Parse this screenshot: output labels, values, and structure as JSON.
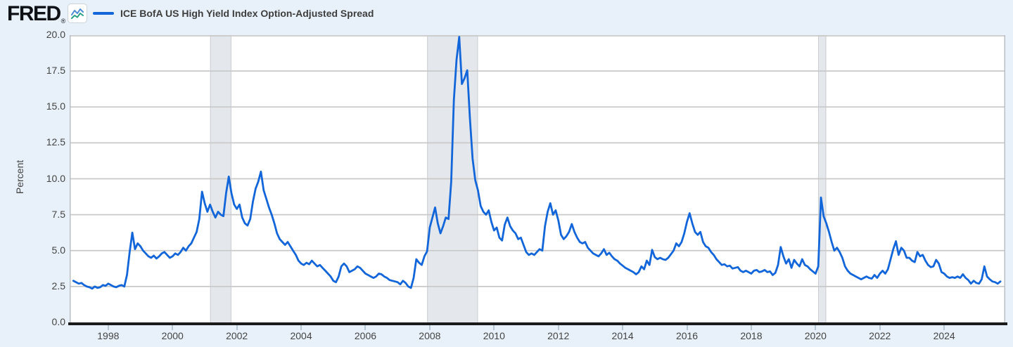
{
  "brand": {
    "logo_text": "FRED",
    "registered_mark": "®"
  },
  "legend": {
    "series_label": "ICE BofA US High Yield Index Option-Adjusted Spread"
  },
  "y_axis": {
    "label": "Percent",
    "tick_labels": [
      "20.0",
      "17.5",
      "15.0",
      "12.5",
      "10.0",
      "7.5",
      "5.0",
      "2.5",
      "0.0"
    ]
  },
  "x_axis": {
    "tick_labels": [
      "1998",
      "2000",
      "2002",
      "2004",
      "2006",
      "2008",
      "2010",
      "2012",
      "2014",
      "2016",
      "2018",
      "2020",
      "2022",
      "2024"
    ]
  },
  "chart_data": {
    "type": "line",
    "title": "ICE BofA US High Yield Index Option-Adjusted Spread",
    "xlabel": "",
    "ylabel": "Percent",
    "ylim": [
      0,
      20
    ],
    "y_tick_step": 2.5,
    "x_domain": [
      1996.8,
      2025.9
    ],
    "x_ticks": [
      1998,
      2000,
      2002,
      2004,
      2006,
      2008,
      2010,
      2012,
      2014,
      2016,
      2018,
      2020,
      2022,
      2024
    ],
    "grid": "horizontal",
    "legend_position": "top-left",
    "frequency": "monthly",
    "series_name": "ICE BofA US High Yield Index Option-Adjusted Spread",
    "units": "percent",
    "start_year": 1996.9167,
    "step_years": 0.0833333,
    "values": [
      2.9,
      2.8,
      2.7,
      2.75,
      2.6,
      2.5,
      2.45,
      2.35,
      2.5,
      2.4,
      2.45,
      2.6,
      2.55,
      2.7,
      2.6,
      2.5,
      2.45,
      2.55,
      2.6,
      2.5,
      3.3,
      4.9,
      6.25,
      5.1,
      5.5,
      5.3,
      5.0,
      4.8,
      4.6,
      4.5,
      4.65,
      4.45,
      4.6,
      4.8,
      4.9,
      4.7,
      4.5,
      4.6,
      4.8,
      4.7,
      4.9,
      5.2,
      5.0,
      5.3,
      5.5,
      5.9,
      6.3,
      7.2,
      9.1,
      8.3,
      7.7,
      8.2,
      7.7,
      7.3,
      7.7,
      7.5,
      7.4,
      9.0,
      10.15,
      9.0,
      8.2,
      7.9,
      8.2,
      7.3,
      6.9,
      6.75,
      7.2,
      8.4,
      9.3,
      9.8,
      10.5,
      9.2,
      8.6,
      8.0,
      7.5,
      6.9,
      6.2,
      5.8,
      5.6,
      5.4,
      5.6,
      5.3,
      5.0,
      4.7,
      4.3,
      4.1,
      4.0,
      4.15,
      4.05,
      4.3,
      4.1,
      3.9,
      4.0,
      3.8,
      3.6,
      3.4,
      3.2,
      2.9,
      2.8,
      3.2,
      3.9,
      4.1,
      3.9,
      3.5,
      3.6,
      3.7,
      3.9,
      3.8,
      3.6,
      3.4,
      3.3,
      3.2,
      3.1,
      3.2,
      3.4,
      3.35,
      3.2,
      3.1,
      2.95,
      2.9,
      2.85,
      2.8,
      2.65,
      2.9,
      2.75,
      2.5,
      2.4,
      3.1,
      4.4,
      4.15,
      4.0,
      4.6,
      4.95,
      6.6,
      7.3,
      8.0,
      6.9,
      6.2,
      6.7,
      7.3,
      7.2,
      9.8,
      15.5,
      18.3,
      19.88,
      16.6,
      17.0,
      17.55,
      14.2,
      11.4,
      9.9,
      9.2,
      8.1,
      7.7,
      7.5,
      7.8,
      7.0,
      6.4,
      6.6,
      5.9,
      5.7,
      6.8,
      7.3,
      6.7,
      6.4,
      6.2,
      5.8,
      5.9,
      5.4,
      4.9,
      4.7,
      4.8,
      4.7,
      4.9,
      5.1,
      5.0,
      6.7,
      7.7,
      8.3,
      7.5,
      7.8,
      7.1,
      6.1,
      5.8,
      6.0,
      6.3,
      6.85,
      6.3,
      5.9,
      5.6,
      5.5,
      5.6,
      5.2,
      5.0,
      4.8,
      4.7,
      4.6,
      4.8,
      5.1,
      4.7,
      4.85,
      4.6,
      4.4,
      4.3,
      4.1,
      3.95,
      3.8,
      3.7,
      3.6,
      3.5,
      3.35,
      3.5,
      3.9,
      3.7,
      4.3,
      4.0,
      5.05,
      4.55,
      4.4,
      4.5,
      4.4,
      4.35,
      4.5,
      4.75,
      5.0,
      5.5,
      5.3,
      5.6,
      6.2,
      7.0,
      7.6,
      6.9,
      6.3,
      6.1,
      6.3,
      5.6,
      5.3,
      5.2,
      4.9,
      4.7,
      4.4,
      4.2,
      4.0,
      4.05,
      3.9,
      3.95,
      3.75,
      3.8,
      3.85,
      3.6,
      3.5,
      3.6,
      3.5,
      3.4,
      3.6,
      3.65,
      3.5,
      3.55,
      3.65,
      3.5,
      3.55,
      3.3,
      3.45,
      4.0,
      5.25,
      4.6,
      4.1,
      4.4,
      3.8,
      4.35,
      4.1,
      3.9,
      4.4,
      4.0,
      3.9,
      3.7,
      3.55,
      3.4,
      3.9,
      8.7,
      7.4,
      6.9,
      6.3,
      5.6,
      5.0,
      5.2,
      4.9,
      4.5,
      3.9,
      3.6,
      3.4,
      3.3,
      3.2,
      3.1,
      3.0,
      3.1,
      3.2,
      3.1,
      3.05,
      3.3,
      3.1,
      3.4,
      3.6,
      3.4,
      3.7,
      4.4,
      5.1,
      5.65,
      4.7,
      5.2,
      5.0,
      4.5,
      4.5,
      4.3,
      4.2,
      4.9,
      4.6,
      4.7,
      4.3,
      4.0,
      3.85,
      3.9,
      4.35,
      4.1,
      3.5,
      3.4,
      3.2,
      3.1,
      3.15,
      3.1,
      3.2,
      3.1,
      3.35,
      3.1,
      2.95,
      2.7,
      2.9,
      2.75,
      2.7,
      3.0,
      3.9,
      3.2,
      3.0,
      2.85,
      2.8,
      2.7,
      2.85
    ],
    "recession_bands": [
      [
        2001.17,
        2001.83
      ],
      [
        2007.92,
        2009.5
      ],
      [
        2020.08,
        2020.33
      ]
    ],
    "colors": {
      "line": "#1266d9",
      "band": "#e4e8ec",
      "band_edge": "#c9cdd1",
      "grid": "#c9c9c9",
      "plot_border": "#b9bfc4",
      "axis": "#1b1b1b",
      "background": "#e8f1f9",
      "plot_background": "#ffffff",
      "tick": "#b7c7d3",
      "text": "#444444"
    }
  }
}
